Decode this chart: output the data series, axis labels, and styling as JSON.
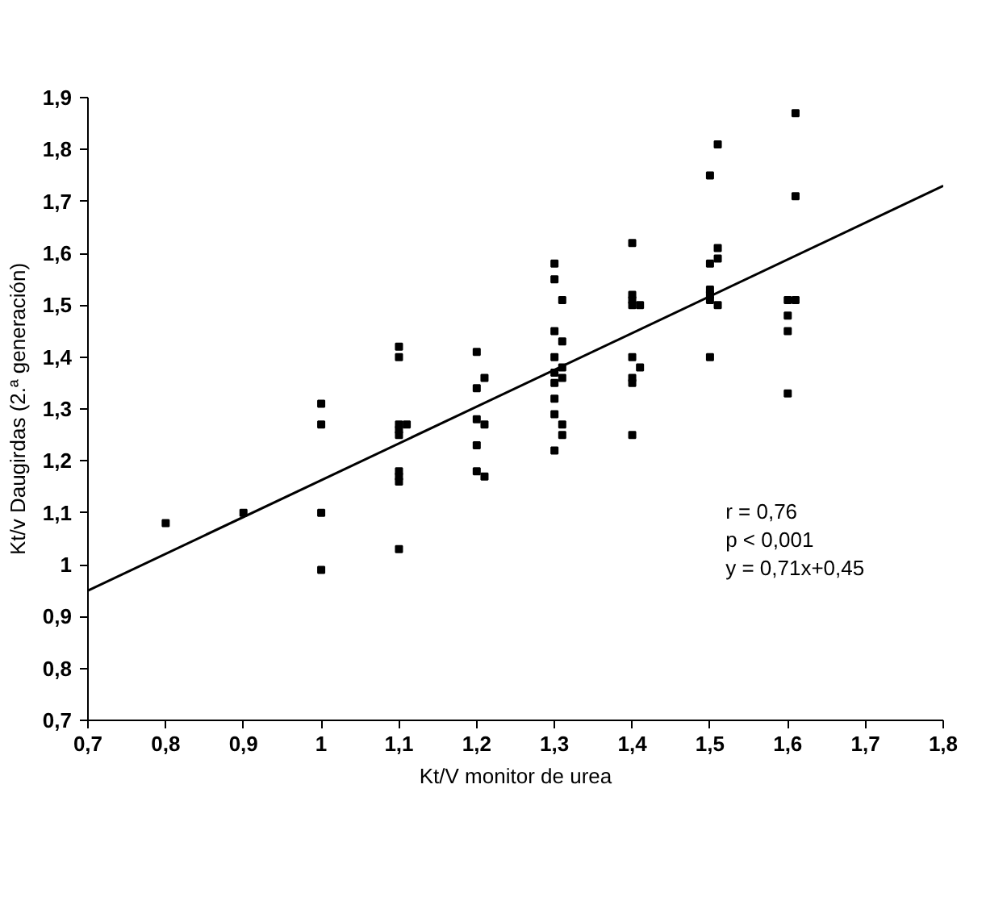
{
  "chart_data": {
    "type": "scatter",
    "xlabel": "Kt/V monitor de urea",
    "ylabel": "Kt/v Daugirdas (2.ª generación)",
    "grid": false,
    "xlim": [
      0.7,
      1.8
    ],
    "ylim": [
      0.7,
      1.9
    ],
    "xticks": [
      {
        "value": 0.7,
        "label": "0,7"
      },
      {
        "value": 0.8,
        "label": "0,8"
      },
      {
        "value": 0.9,
        "label": "0,9"
      },
      1,
      {
        "value": 1.1,
        "label": "1,1"
      },
      {
        "value": 1.2,
        "label": "1,2"
      },
      {
        "value": 1.3,
        "label": "1,3"
      },
      {
        "value": 1.4,
        "label": "1,4"
      },
      {
        "value": 1.5,
        "label": "1,5"
      },
      {
        "value": 1.6,
        "label": "1,6"
      },
      {
        "value": 1.7,
        "label": "1,7"
      },
      {
        "value": 1.8,
        "label": "1,8"
      }
    ],
    "yticks": [
      {
        "value": 0.7,
        "label": "0,7"
      },
      {
        "value": 0.8,
        "label": "0,8"
      },
      {
        "value": 0.9,
        "label": "0,9"
      },
      1,
      {
        "value": 1.1,
        "label": "1,1"
      },
      {
        "value": 1.2,
        "label": "1,2"
      },
      {
        "value": 1.3,
        "label": "1,3"
      },
      {
        "value": 1.4,
        "label": "1,4"
      },
      {
        "value": 1.5,
        "label": "1,5"
      },
      {
        "value": 1.6,
        "label": "1,6"
      },
      {
        "value": 1.7,
        "label": "1,7"
      },
      {
        "value": 1.8,
        "label": "1,8"
      },
      {
        "value": 1.9,
        "label": "1,9"
      }
    ],
    "annotations": [
      "r = 0,76",
      "p < 0,001",
      "y = 0,71x+0,45"
    ],
    "series": [
      {
        "marker": "square",
        "color": "#000000",
        "x": [
          0.8,
          0.9,
          1.0,
          1.0,
          1.0,
          1.0,
          1.1,
          1.1,
          1.1,
          1.11,
          1.1,
          1.1,
          1.1,
          1.1,
          1.1,
          1.1,
          1.2,
          1.21,
          1.2,
          1.2,
          1.21,
          1.2,
          1.2,
          1.21,
          1.3,
          1.3,
          1.31,
          1.3,
          1.31,
          1.3,
          1.31,
          1.3,
          1.31,
          1.3,
          1.3,
          1.3,
          1.31,
          1.31,
          1.3,
          1.4,
          1.4,
          1.4,
          1.41,
          1.4,
          1.4,
          1.41,
          1.4,
          1.4,
          1.4,
          1.5,
          1.5,
          1.51,
          1.51,
          1.5,
          1.51,
          1.5,
          1.5,
          1.51,
          1.5,
          1.6,
          1.61,
          1.6,
          1.61,
          1.61,
          1.6,
          1.6
        ],
        "values": [
          1.08,
          1.1,
          1.31,
          1.27,
          1.1,
          0.99,
          1.42,
          1.4,
          1.27,
          1.27,
          1.26,
          1.25,
          1.18,
          1.17,
          1.16,
          1.03,
          1.41,
          1.36,
          1.34,
          1.28,
          1.27,
          1.23,
          1.18,
          1.17,
          1.58,
          1.55,
          1.51,
          1.45,
          1.43,
          1.4,
          1.38,
          1.37,
          1.36,
          1.35,
          1.32,
          1.29,
          1.27,
          1.25,
          1.22,
          1.62,
          1.52,
          1.51,
          1.5,
          1.5,
          1.4,
          1.38,
          1.36,
          1.35,
          1.25,
          1.75,
          1.58,
          1.81,
          1.61,
          1.53,
          1.59,
          1.52,
          1.51,
          1.5,
          1.4,
          1.51,
          1.87,
          1.45,
          1.71,
          1.51,
          1.48,
          1.33
        ]
      },
      {
        "type": "line",
        "marker": "none",
        "color": "#000000",
        "x": [
          0.7,
          1.8
        ],
        "values": [
          0.95,
          1.73
        ]
      }
    ]
  }
}
